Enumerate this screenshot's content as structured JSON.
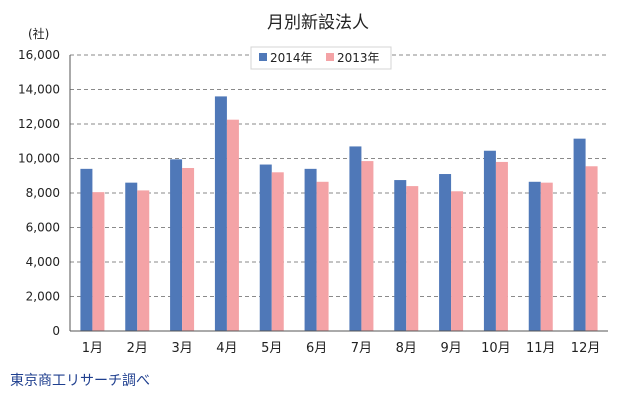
{
  "chart_data": {
    "type": "bar",
    "title": "月別新設法人",
    "ylabel": "(社)",
    "xlabel": "",
    "categories": [
      "1月",
      "2月",
      "3月",
      "4月",
      "5月",
      "6月",
      "7月",
      "8月",
      "9月",
      "10月",
      "11月",
      "12月"
    ],
    "series": [
      {
        "name": "2014年",
        "color": "#4f78b8",
        "values": [
          9400,
          8600,
          9950,
          13600,
          9650,
          9400,
          10700,
          8750,
          9100,
          10450,
          8650,
          11150
        ]
      },
      {
        "name": "2013年",
        "color": "#f4a3a6",
        "values": [
          8050,
          8150,
          9450,
          12250,
          9200,
          8650,
          9850,
          8400,
          8100,
          9800,
          8600,
          9550
        ]
      }
    ],
    "ylim": [
      0,
      16000
    ],
    "yticks": [
      "0",
      "2,000",
      "4,000",
      "6,000",
      "8,000",
      "10,000",
      "12,000",
      "14,000",
      "16,000"
    ],
    "grid": true,
    "legend_position": "top-center"
  },
  "source": "東京商工リサーチ調べ"
}
